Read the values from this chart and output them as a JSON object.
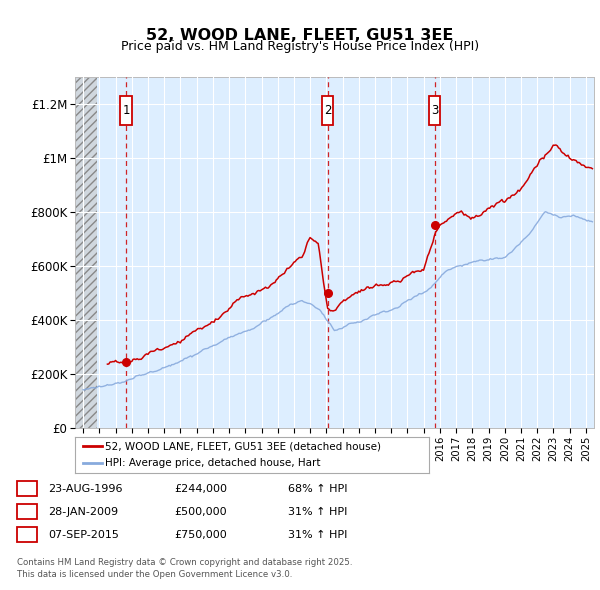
{
  "title": "52, WOOD LANE, FLEET, GU51 3EE",
  "subtitle": "Price paid vs. HM Land Registry's House Price Index (HPI)",
  "legend_line1": "52, WOOD LANE, FLEET, GU51 3EE (detached house)",
  "legend_line2": "HPI: Average price, detached house, Hart",
  "footer": "Contains HM Land Registry data © Crown copyright and database right 2025.\nThis data is licensed under the Open Government Licence v3.0.",
  "xlim": [
    1993.5,
    2025.5
  ],
  "ylim": [
    0,
    1300000
  ],
  "bg_color": "#ddeeff",
  "hatch_end_year": 1994.83,
  "red_color": "#cc0000",
  "blue_color": "#88aadd",
  "purchase_years": [
    1996.64,
    2009.07,
    2015.68
  ],
  "purchase_prices": [
    244000,
    500000,
    750000
  ],
  "table_data": [
    [
      "1",
      "23-AUG-1996",
      "£244,000",
      "68% ↑ HPI"
    ],
    [
      "2",
      "28-JAN-2009",
      "£500,000",
      "31% ↑ HPI"
    ],
    [
      "3",
      "07-SEP-2015",
      "£750,000",
      "31% ↑ HPI"
    ]
  ],
  "yticks": [
    0,
    200000,
    400000,
    600000,
    800000,
    1000000,
    1200000
  ],
  "ylabels": [
    "£0",
    "£200K",
    "£400K",
    "£600K",
    "£800K",
    "£1M",
    "£1.2M"
  ]
}
